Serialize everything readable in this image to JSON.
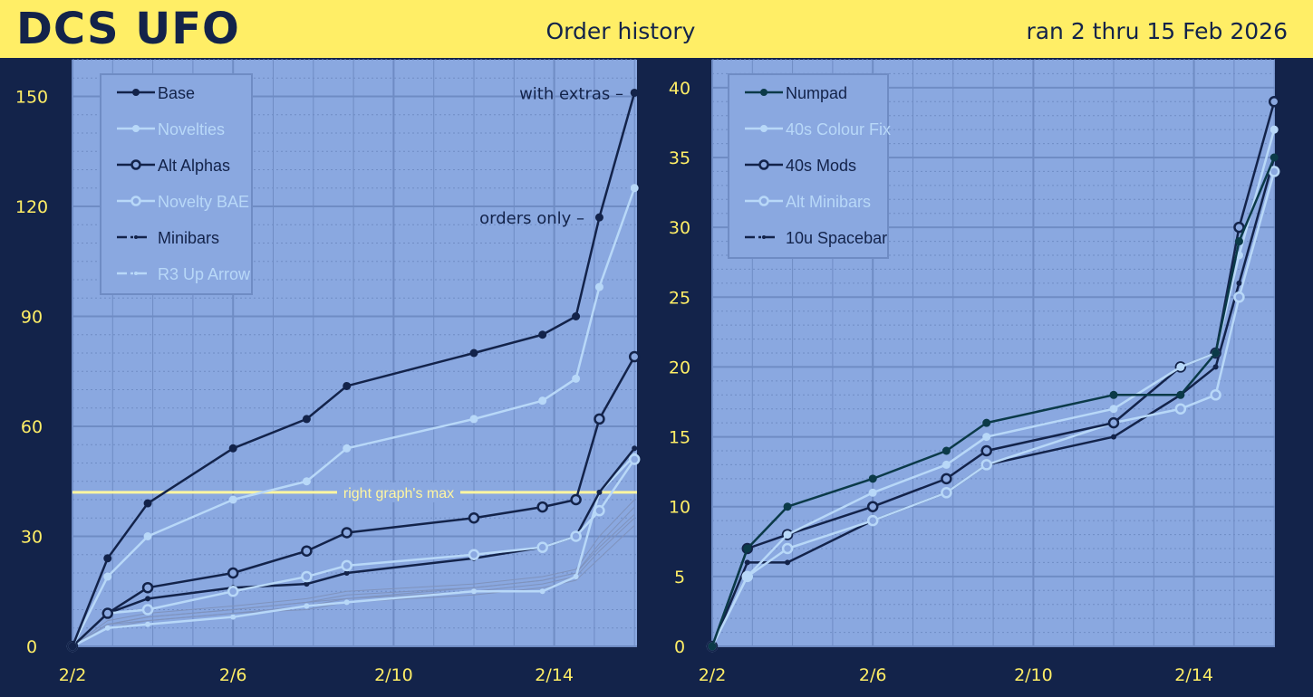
{
  "header": {
    "brand": "DCS UFO",
    "title": "Order history",
    "range": "ran 2 thru 15 Feb 2026"
  },
  "colors": {
    "background": "#13234a",
    "plot": "#8aa8e0",
    "accent": "#ffee66",
    "dark": "#13234a",
    "light": "#b8d8f8",
    "teal": "#0b3a48",
    "faint": "#7f93bd"
  },
  "chart_data": [
    {
      "type": "line",
      "grid": true,
      "legend": "top-left",
      "ylim": [
        0,
        160
      ],
      "yticks": [
        0,
        30,
        60,
        90,
        120,
        150
      ],
      "xticks": [
        "2/2",
        "2/6",
        "2/10",
        "2/14"
      ],
      "x": [
        "2026-02-02T00:00",
        "2026-02-02T21:00",
        "2026-02-03T21:00",
        "2026-02-06T00:00",
        "2026-02-07T20:00",
        "2026-02-08T20:00",
        "2026-02-12T00:00",
        "2026-02-13T17:00",
        "2026-02-14T13:00",
        "2026-02-15T03:00",
        "2026-02-16T00:00"
      ],
      "series": [
        {
          "name": "Base",
          "style": "dark-filled",
          "values": [
            0,
            24,
            39,
            54,
            62,
            71,
            80,
            85,
            90,
            117,
            151
          ]
        },
        {
          "name": "Novelties",
          "style": "light-filled",
          "values": [
            0,
            19,
            30,
            40,
            45,
            54,
            62,
            67,
            73,
            98,
            125
          ]
        },
        {
          "name": "Alt Alphas",
          "style": "dark-open",
          "values": [
            0,
            9,
            16,
            20,
            26,
            31,
            35,
            38,
            40,
            62,
            79
          ]
        },
        {
          "name": "Novelty BAE",
          "style": "light-open",
          "values": [
            0,
            9,
            10,
            15,
            19,
            22,
            25,
            27,
            30,
            37,
            51
          ]
        },
        {
          "name": "Minibars",
          "style": "dark-dot",
          "values": [
            0,
            9,
            13,
            16,
            17,
            20,
            24,
            27,
            30,
            42,
            54
          ]
        },
        {
          "name": "R3 Up Arrow",
          "style": "light-dot",
          "values": [
            0,
            5,
            6,
            8,
            11,
            12,
            15,
            15,
            19,
            42,
            52
          ]
        },
        {
          "style": "faint",
          "values": [
            0,
            6,
            8,
            10,
            12,
            14,
            16,
            18,
            20,
            28,
            38
          ]
        },
        {
          "style": "faint",
          "values": [
            0,
            6,
            7,
            9,
            11,
            13,
            15,
            17,
            19,
            26,
            35
          ]
        },
        {
          "style": "faint",
          "values": [
            0,
            7,
            9,
            11,
            13,
            15,
            17,
            19,
            21,
            30,
            40
          ]
        },
        {
          "style": "faint",
          "values": [
            0,
            5,
            7,
            9,
            10,
            12,
            14,
            16,
            18,
            24,
            33
          ]
        },
        {
          "style": "faint",
          "values": [
            0,
            6,
            8,
            10,
            12,
            13,
            16,
            18,
            20,
            27,
            36
          ]
        }
      ],
      "annotations": [
        {
          "text": "with extras –",
          "series": "Base"
        },
        {
          "text": "orders only –",
          "series": "Novelties"
        }
      ],
      "reference_line": {
        "value": 42,
        "label": "right graph's max"
      }
    },
    {
      "type": "line",
      "grid": true,
      "legend": "top-left",
      "ylim": [
        0,
        42
      ],
      "yticks": [
        0,
        5,
        10,
        15,
        20,
        25,
        30,
        35,
        40
      ],
      "xticks": [
        "2/2",
        "2/6",
        "2/10",
        "2/14"
      ],
      "x": [
        "2026-02-02T00:00",
        "2026-02-02T21:00",
        "2026-02-03T21:00",
        "2026-02-06T00:00",
        "2026-02-07T20:00",
        "2026-02-08T20:00",
        "2026-02-12T00:00",
        "2026-02-13T16:00",
        "2026-02-14T13:00",
        "2026-02-15T03:00",
        "2026-02-16T00:00"
      ],
      "series": [
        {
          "name": "Numpad",
          "style": "teal-filled",
          "values": [
            0,
            7,
            10,
            12,
            14,
            16,
            18,
            18,
            21,
            29,
            35
          ]
        },
        {
          "name": "40s Colour Fix",
          "style": "light-filled",
          "values": [
            0,
            5,
            8,
            11,
            13,
            15,
            17,
            20,
            21,
            28,
            37
          ]
        },
        {
          "name": "40s Mods",
          "style": "dark-open",
          "values": [
            0,
            7,
            8,
            10,
            12,
            14,
            16,
            20,
            21,
            30,
            39
          ]
        },
        {
          "name": "Alt Minibars",
          "style": "light-open",
          "values": [
            0,
            5,
            7,
            9,
            11,
            13,
            16,
            17,
            18,
            25,
            34
          ]
        },
        {
          "name": "10u Spacebar",
          "style": "dark-dot",
          "values": [
            0,
            6,
            6,
            9,
            11,
            13,
            15,
            18,
            20,
            26,
            35
          ]
        }
      ]
    }
  ]
}
